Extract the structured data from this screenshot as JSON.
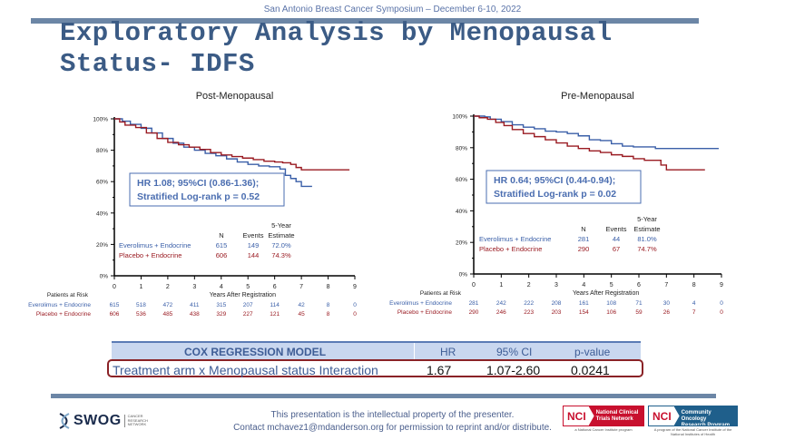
{
  "header": {
    "conference": "San Antonio Breast Cancer Symposium – December 6-10, 2022",
    "title_line1": "Exploratory Analysis by Menopausal",
    "title_line2": "Status- IDFS"
  },
  "colors": {
    "everolimus": "#3a5fa8",
    "placebo": "#9a1b22",
    "title": "#3b5b85",
    "bar": "#6c86a6"
  },
  "chart_data": [
    {
      "type": "line",
      "title": "Post-Menopausal",
      "xlabel": "Years After Registration",
      "ylabel": "",
      "xlim": [
        0,
        9
      ],
      "ylim": [
        0,
        100
      ],
      "x_ticks": [
        "0",
        "1",
        "2",
        "3",
        "4",
        "5",
        "6",
        "7",
        "8",
        "9"
      ],
      "y_ticks": [
        "0%",
        "20%",
        "40%",
        "60%",
        "80%",
        "100%"
      ],
      "grid": false,
      "stats_box": {
        "line1": "HR 1.08; 95%CI (0.86-1.36);",
        "line2": "Stratified Log-rank p = 0.52"
      },
      "legend_headers": {
        "n": "N",
        "events": "Events",
        "estimate_top": "5-Year",
        "estimate": "Estimate"
      },
      "series": [
        {
          "name": "Everolimus + Endocrine",
          "n": "615",
          "events": "149",
          "estimate": "72.0%",
          "x": [
            0,
            0.3,
            0.6,
            1.0,
            1.4,
            1.8,
            2.2,
            2.6,
            3.0,
            3.4,
            3.8,
            4.2,
            4.6,
            5.0,
            5.4,
            5.8,
            6.2,
            6.4,
            6.6,
            6.8,
            7.0,
            7.4
          ],
          "y": [
            100,
            98.5,
            96.5,
            94,
            91,
            87.5,
            84.5,
            82,
            80,
            78,
            76.5,
            74.5,
            72.5,
            71,
            70,
            69.5,
            68,
            64,
            62,
            60,
            57,
            57
          ]
        },
        {
          "name": "Placebo + Endocrine",
          "n": "606",
          "events": "144",
          "estimate": "74.3%",
          "x": [
            0,
            0.2,
            0.4,
            0.8,
            1.2,
            1.6,
            2.0,
            2.4,
            2.8,
            3.2,
            3.6,
            4.0,
            4.4,
            4.8,
            5.2,
            5.6,
            6.0,
            6.3,
            6.6,
            6.8,
            7.0,
            7.4,
            8.0,
            8.8
          ],
          "y": [
            100,
            98,
            96,
            94.5,
            91,
            87.5,
            85,
            83.5,
            82,
            80.5,
            78.5,
            77,
            76,
            75,
            74,
            73,
            72.5,
            72,
            71,
            69,
            67.5,
            67.5,
            67.5,
            67.5
          ]
        }
      ],
      "at_risk": {
        "label": "Patients at Risk",
        "rows": [
          {
            "name": "Everolimus + Endocrine",
            "values": [
              "615",
              "518",
              "472",
              "411",
              "315",
              "207",
              "114",
              "42",
              "8",
              "0"
            ]
          },
          {
            "name": "Placebo + Endocrine",
            "values": [
              "606",
              "536",
              "485",
              "438",
              "329",
              "227",
              "121",
              "45",
              "8",
              "0"
            ]
          }
        ]
      }
    },
    {
      "type": "line",
      "title": "Pre-Menopausal",
      "xlabel": "Years After Registration",
      "ylabel": "",
      "xlim": [
        0,
        9
      ],
      "ylim": [
        0,
        100
      ],
      "x_ticks": [
        "0",
        "1",
        "2",
        "3",
        "4",
        "5",
        "6",
        "7",
        "8",
        "9"
      ],
      "y_ticks": [
        "0%",
        "20%",
        "40%",
        "60%",
        "80%",
        "100%"
      ],
      "grid": false,
      "stats_box": {
        "line1": "HR 0.64; 95%CI (0.44-0.94);",
        "line2": "Stratified Log-rank p = 0.02"
      },
      "legend_headers": {
        "n": "N",
        "events": "Events",
        "estimate_top": "5-Year",
        "estimate": "Estimate"
      },
      "series": [
        {
          "name": "Everolimus + Endocrine",
          "n": "281",
          "events": "44",
          "estimate": "81.0%",
          "x": [
            0,
            0.4,
            0.6,
            1.0,
            1.4,
            1.8,
            2.2,
            2.6,
            3.0,
            3.4,
            3.8,
            4.2,
            4.6,
            5.0,
            5.4,
            5.8,
            6.2,
            6.6,
            7.0,
            8.0,
            8.9
          ],
          "y": [
            100,
            99.5,
            98,
            96.5,
            94.5,
            93,
            92,
            90.5,
            90,
            89,
            87.5,
            85,
            84.5,
            82.5,
            81,
            80.5,
            80.5,
            79.5,
            79.5,
            79.5,
            79.5
          ]
        },
        {
          "name": "Placebo + Endocrine",
          "n": "290",
          "events": "67",
          "estimate": "74.7%",
          "x": [
            0,
            0.2,
            0.5,
            0.8,
            1.1,
            1.4,
            1.8,
            2.2,
            2.6,
            3.0,
            3.4,
            3.8,
            4.2,
            4.6,
            5.0,
            5.4,
            5.8,
            6.2,
            6.6,
            6.8,
            7.0,
            7.5,
            8.4
          ],
          "y": [
            100,
            99,
            98,
            96,
            94,
            91.5,
            89,
            87,
            85,
            83,
            81,
            79.5,
            78,
            77,
            75.5,
            74.5,
            73,
            72,
            72,
            69,
            66,
            66,
            66
          ]
        }
      ],
      "at_risk": {
        "label": "Patients at Risk",
        "rows": [
          {
            "name": "Everolimus + Endocrine",
            "values": [
              "281",
              "242",
              "222",
              "208",
              "161",
              "108",
              "71",
              "30",
              "4",
              "0"
            ]
          },
          {
            "name": "Placebo + Endocrine",
            "values": [
              "290",
              "246",
              "223",
              "203",
              "154",
              "106",
              "59",
              "26",
              "7",
              "0"
            ]
          }
        ]
      }
    }
  ],
  "cox_table": {
    "headers": [
      "COX REGRESSION MODEL",
      "HR",
      "95% CI",
      "p-value"
    ],
    "row": [
      "Treatment arm  x Menopausal status Interaction",
      "1.67",
      "1.07-2.60",
      "0.0241"
    ]
  },
  "footer": {
    "line1": "This presentation is the intellectual property of the presenter.",
    "line2": "Contact mchavez1@mdanderson.org for permission to reprint and/or distribute.",
    "swog_word": "SWOG",
    "swog_sub": [
      "CANCER",
      "RESEARCH",
      "NETWORK"
    ],
    "nci1_mark": "NCI",
    "nci1_name": [
      "National Clinical",
      "Trials Network"
    ],
    "nci1_sub": "a National Cancer Institute program",
    "nci2_mark": "NCI",
    "nci2_name": [
      "Community Oncology",
      "Research Program"
    ],
    "nci2_sub": "A program of the National Cancer Institute of the National Institutes of Health"
  }
}
